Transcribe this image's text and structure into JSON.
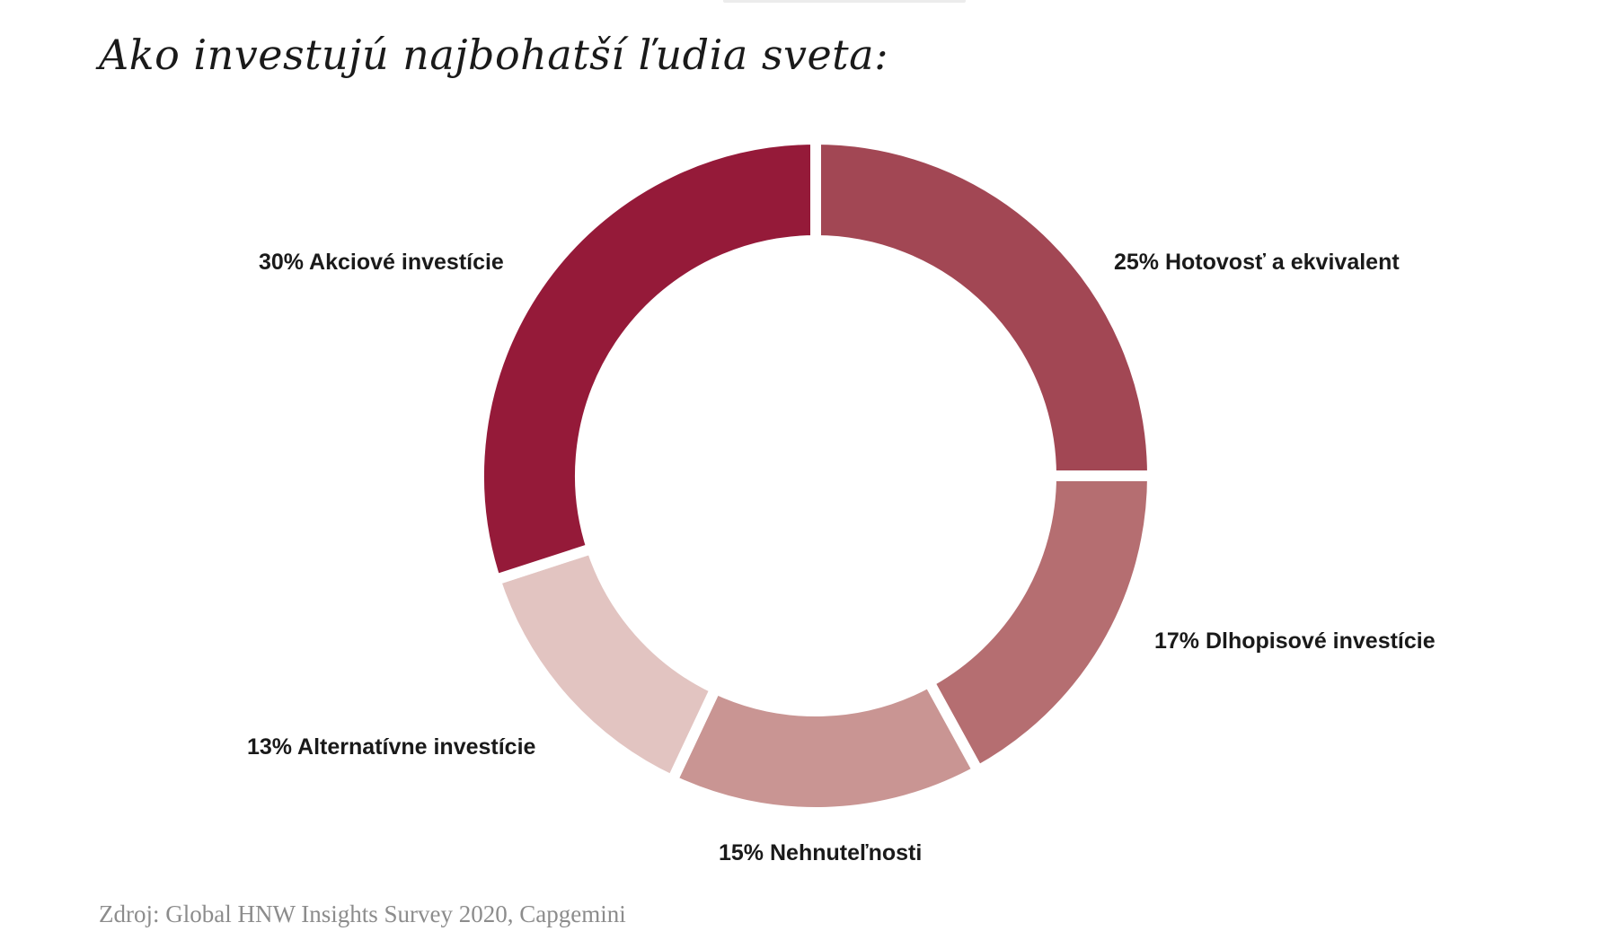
{
  "title": "Ako investujú najbohatší ľudia sveta:",
  "chart_data": {
    "type": "pie",
    "variant": "donut",
    "title": "Ako investujú najbohatší ľudia sveta:",
    "slices": [
      {
        "label": "30% Akciové investície",
        "value": 30,
        "color": "#951a39"
      },
      {
        "label": "25% Hotovosť a ekvivalent",
        "value": 25,
        "color": "#a24754"
      },
      {
        "label": "17% Dlhopisové investície",
        "value": 17,
        "color": "#b56e71"
      },
      {
        "label": "15% Nehnuteľnosti",
        "value": 15,
        "color": "#c99593"
      },
      {
        "label": "13% Alternatívne investície",
        "value": 13,
        "color": "#e2c4c1"
      }
    ],
    "start_slice_note": "Akciové investície ends at top; Hotovosť a ekvivalent starts clockwise from top"
  },
  "source": "Zdroj: Global HNW Insights Survey 2020, Capgemini"
}
